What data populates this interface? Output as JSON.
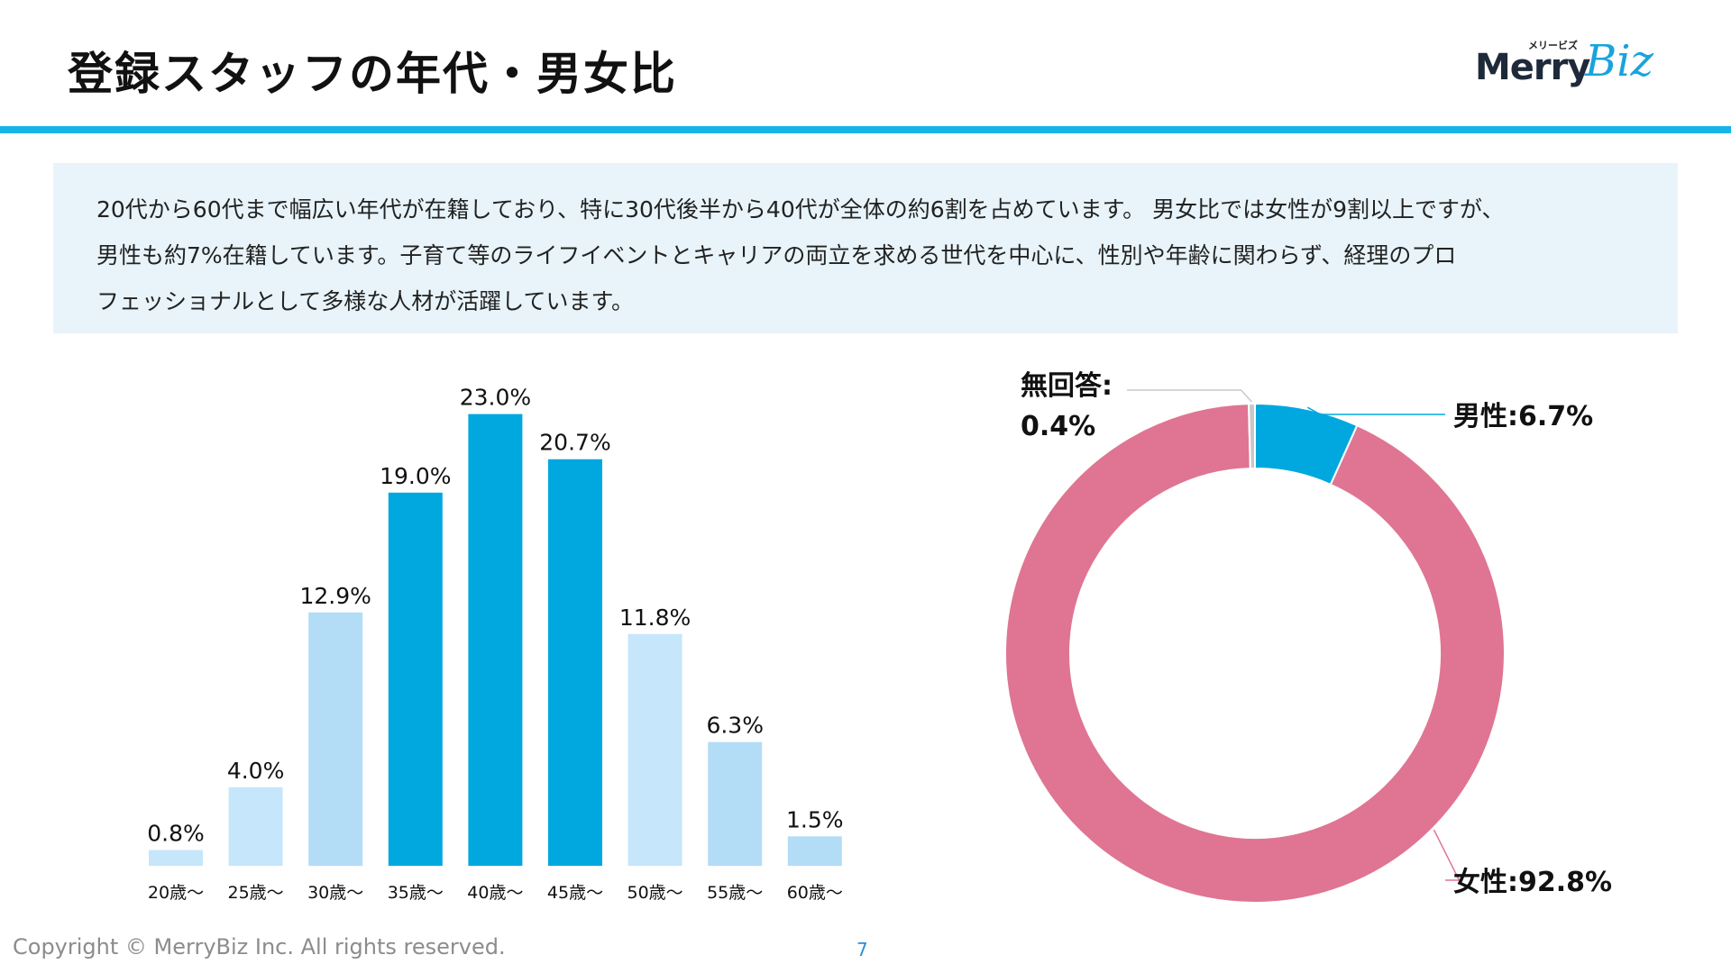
{
  "header": {
    "title": "登録スタッフの年代・男女比",
    "logo_kana": "メリービズ",
    "logo_merry": "Merry",
    "logo_biz": "Biz"
  },
  "description": {
    "lines": [
      "20代から60代まで幅広い年代が在籍しており、特に30代後半から40代が全体の約6割を占めています。 男女比では女性が9割以上ですが、",
      "男性も約7%在籍しています。子育て等のライフイベントとキャリアの両立を求める世代を中心に、性別や年齢に関わらず、経理のプロ",
      "フェッショナルとして多様な人材が活躍しています。"
    ]
  },
  "footer": {
    "copyright": "Copyright © MerryBiz Inc. All rights reserved.",
    "page_number": "7"
  },
  "colors": {
    "accent": "#18b4e8",
    "bar_highlight": "#00a8df",
    "bar_light": "#b3dcf6",
    "bar_lighter": "#c6e6fb",
    "pie_female": "#df7592",
    "pie_male": "#00a8df",
    "pie_no_answer": "#c8c8c8"
  },
  "chart_data": [
    {
      "type": "bar",
      "title": "",
      "xlabel": "",
      "ylabel": "",
      "ylim": [
        0,
        25
      ],
      "categories": [
        "20歳～",
        "25歳～",
        "30歳～",
        "35歳～",
        "40歳～",
        "45歳～",
        "50歳～",
        "55歳～",
        "60歳～"
      ],
      "values": [
        0.8,
        4.0,
        12.9,
        19.0,
        23.0,
        20.7,
        11.8,
        6.3,
        1.5
      ],
      "labels": [
        "0.8%",
        "4.0%",
        "12.9%",
        "19.0%",
        "23.0%",
        "20.7%",
        "11.8%",
        "6.3%",
        "1.5%"
      ],
      "bar_colors": [
        "#c6e6fb",
        "#c6e6fb",
        "#b3dcf6",
        "#00a8df",
        "#00a8df",
        "#00a8df",
        "#c6e6fb",
        "#b3dcf6",
        "#b3dcf6"
      ],
      "grid": false
    },
    {
      "type": "pie",
      "style": "donut",
      "slices": [
        {
          "name": "男性",
          "value": 6.7,
          "label": "男性:6.7%",
          "color": "#00a8df"
        },
        {
          "name": "女性",
          "value": 92.8,
          "label": "女性:92.8%",
          "color": "#df7592"
        },
        {
          "name": "無回答",
          "value": 0.4,
          "label_line1": "無回答:",
          "label_line2": "0.4%",
          "color": "#c8c8c8"
        }
      ]
    }
  ]
}
